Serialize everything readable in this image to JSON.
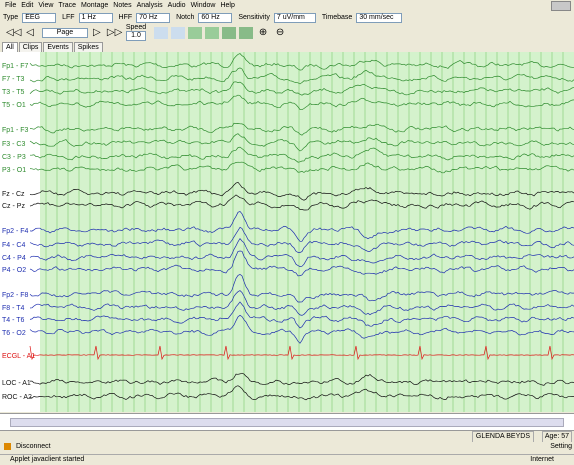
{
  "menu": [
    "File",
    "Edit",
    "View",
    "Trace",
    "Montage",
    "Notes",
    "Analysis",
    "Audio",
    "Window",
    "Help"
  ],
  "toolbar": {
    "type_label": "Type",
    "type_value": "EEG",
    "lff_label": "LFF",
    "lff_value": "1 Hz",
    "hff_label": "HFF",
    "hff_value": "70 Hz",
    "notch_label": "Notch",
    "notch_value": "60 Hz",
    "sensitivity_label": "Sensitivity",
    "sensitivity_value": "7 uV/mm",
    "timebase_label": "Timebase",
    "timebase_value": "30 mm/sec"
  },
  "nav": {
    "page": "Page",
    "speed_label": "Speed",
    "speed_value": "1.0"
  },
  "tabs": [
    "All",
    "Clips",
    "Events",
    "Spikes"
  ],
  "channels": [
    {
      "label": "Fp1 - F7",
      "color": "#2e8b2e"
    },
    {
      "label": "F7 - T3",
      "color": "#2e8b2e"
    },
    {
      "label": "T3 - T5",
      "color": "#2e8b2e"
    },
    {
      "label": "T5 - O1",
      "color": "#2e8b2e"
    },
    {
      "label": "Fp1 - F3",
      "color": "#2e8b2e"
    },
    {
      "label": "F3 - C3",
      "color": "#2e8b2e"
    },
    {
      "label": "C3 - P3",
      "color": "#2e8b2e"
    },
    {
      "label": "P3 - O1",
      "color": "#2e8b2e"
    },
    {
      "label": "Fz - Cz",
      "color": "#111111"
    },
    {
      "label": "Cz - Pz",
      "color": "#111111"
    },
    {
      "label": "Fp2 - F4",
      "color": "#1f2fb0"
    },
    {
      "label": "F4 - C4",
      "color": "#1f2fb0"
    },
    {
      "label": "C4 - P4",
      "color": "#1f2fb0"
    },
    {
      "label": "P4 - O2",
      "color": "#1f2fb0"
    },
    {
      "label": "Fp2 - F8",
      "color": "#1f2fb0"
    },
    {
      "label": "F8 - T4",
      "color": "#1f2fb0"
    },
    {
      "label": "T4 - T6",
      "color": "#1f2fb0"
    },
    {
      "label": "T6 - O2",
      "color": "#1f2fb0"
    },
    {
      "label": "ECGL - A1",
      "color": "#dd1111"
    },
    {
      "label": "LOC - A1",
      "color": "#111111"
    },
    {
      "label": "ROC - A2",
      "color": "#111111"
    }
  ],
  "patient": {
    "name": "GLENDA BEYDS",
    "age": "Age: 57"
  },
  "connection": {
    "action": "Disconnect",
    "setting": "Setting"
  },
  "statusbar": {
    "message": "Applet javaclient started",
    "zone": "Internet"
  }
}
